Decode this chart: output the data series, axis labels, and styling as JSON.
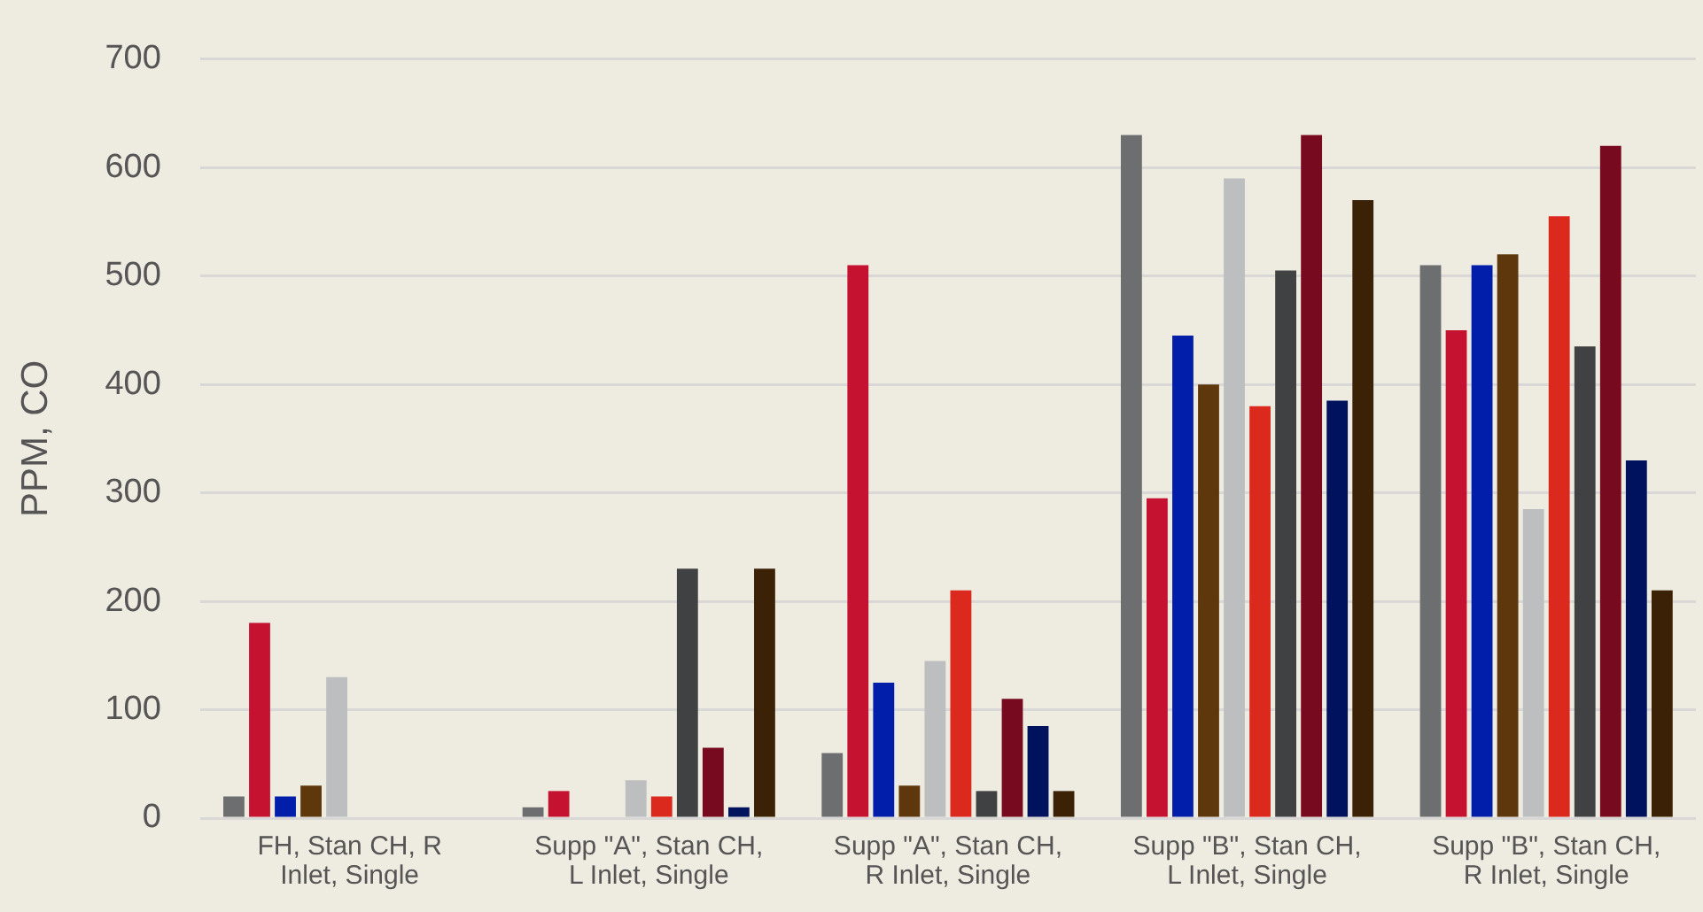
{
  "chart_data": {
    "type": "bar",
    "ylabel": "PPM, CO",
    "categories": [
      "FH, Stan CH, R Inlet, Single",
      "Supp \"A\", Stan CH, L Inlet, Single",
      "Supp \"A\", Stan CH, R Inlet, Single",
      "Supp \"B\", Stan CH, L Inlet, Single",
      "Supp \"B\", Stan CH, R Inlet, Single"
    ],
    "series": [
      {
        "color": "#6d6e70",
        "values": [
          20,
          10,
          60,
          630,
          510
        ]
      },
      {
        "color": "#c41230",
        "values": [
          180,
          25,
          510,
          295,
          450
        ]
      },
      {
        "color": "#001eaa",
        "values": [
          20,
          null,
          125,
          445,
          510
        ]
      },
      {
        "color": "#5e380c",
        "values": [
          30,
          null,
          30,
          400,
          520
        ]
      },
      {
        "color": "#bdbec0",
        "values": [
          130,
          35,
          145,
          590,
          285
        ]
      },
      {
        "color": "#dc291e",
        "values": [
          null,
          20,
          210,
          380,
          555
        ]
      },
      {
        "color": "#404142",
        "values": [
          null,
          230,
          25,
          505,
          435
        ]
      },
      {
        "color": "#770a1e",
        "values": [
          null,
          65,
          110,
          630,
          620
        ]
      },
      {
        "color": "#00125e",
        "values": [
          null,
          10,
          85,
          385,
          330
        ]
      },
      {
        "color": "#3b2206",
        "values": [
          null,
          230,
          25,
          570,
          210
        ]
      }
    ],
    "ylim": [
      0,
      700
    ],
    "yticks": [
      0,
      100,
      200,
      300,
      400,
      500,
      600,
      700
    ],
    "grid": "y",
    "legend": false
  }
}
